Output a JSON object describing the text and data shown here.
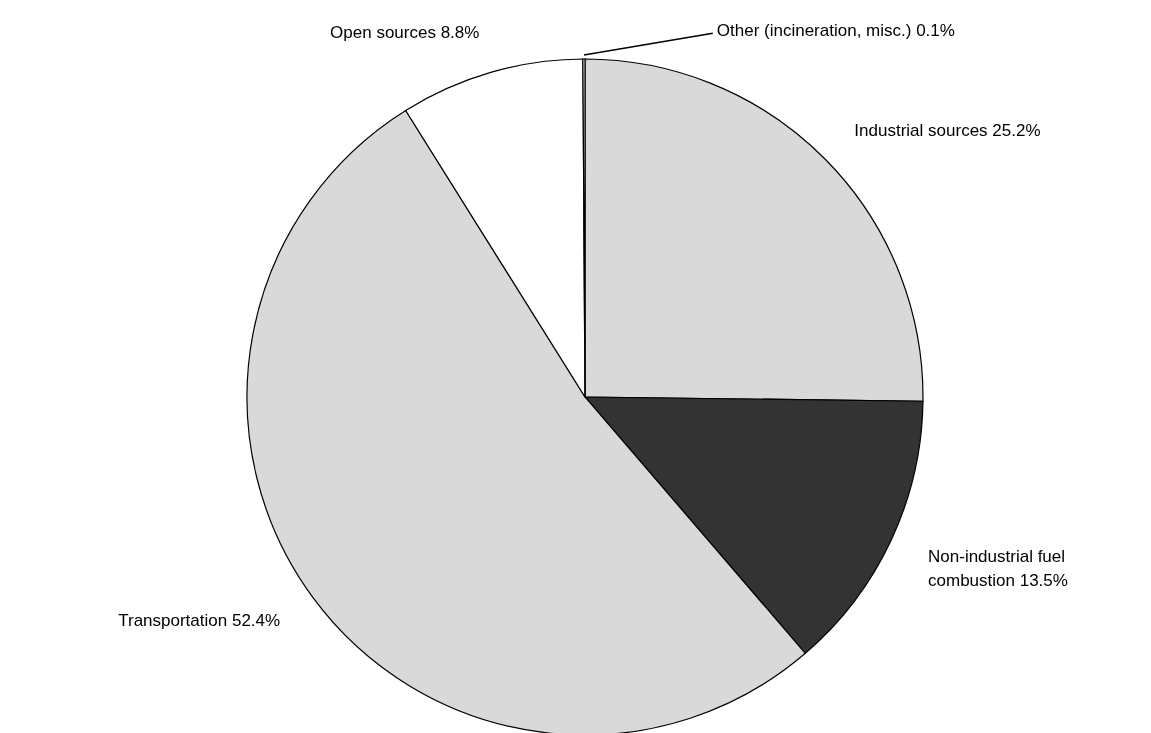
{
  "chart_data": {
    "type": "pie",
    "categories": [
      "Industrial sources",
      "Non-industrial fuel combustion",
      "Transportation",
      "Open sources",
      "Other (incineration, misc.)"
    ],
    "values": [
      25.2,
      13.5,
      52.4,
      8.8,
      0.1
    ],
    "value_labels": [
      "25.2%",
      "13.5%",
      "52.4%",
      "8.8%",
      "0.1%"
    ],
    "colors": [
      "#d9d9d9",
      "#333333",
      "#d9d9d9",
      "#ffffff",
      "#ffffff"
    ]
  }
}
